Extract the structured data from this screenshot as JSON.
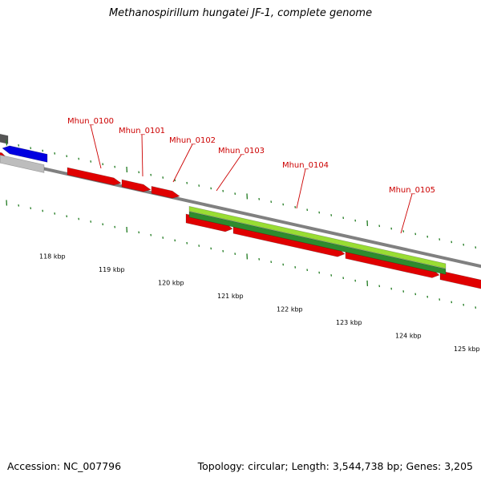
{
  "title": "Methanospirillum hungatei JF-1, complete genome",
  "accession": "Accession: NC_007796",
  "summary": "Topology: circular; Length: 3,544,738 bp; Genes: 3,205",
  "colors": {
    "forward_cds": "#e00000",
    "reverse_cds": "#0000e0",
    "gray_feature": "#bdbdbd",
    "dark_feature": "#555555",
    "light_green": "#99dd33",
    "dark_green": "#2e8b2e",
    "backbone": "#808080",
    "tick": "#1f7a1f",
    "label": "#cc0000"
  },
  "tick_labels": [
    "118 kbp",
    "119 kbp",
    "120 kbp",
    "121 kbp",
    "122 kbp",
    "123 kbp",
    "124 kbp",
    "125 kbp"
  ],
  "gene_labels": [
    "Mhun_0100",
    "Mhun_0101",
    "Mhun_0102",
    "Mhun_0103",
    "Mhun_0104",
    "Mhun_0105"
  ]
}
